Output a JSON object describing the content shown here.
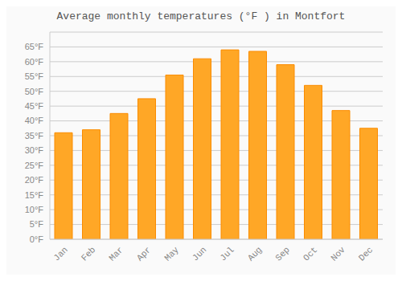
{
  "chart_data": {
    "type": "bar",
    "title": "Average monthly temperatures (°F ) in Montfort",
    "categories": [
      "Jan",
      "Feb",
      "Mar",
      "Apr",
      "May",
      "Jun",
      "Jul",
      "Aug",
      "Sep",
      "Oct",
      "Nov",
      "Dec"
    ],
    "values": [
      36,
      37,
      42.5,
      47.5,
      55.5,
      61,
      64,
      63.5,
      59,
      52,
      43.5,
      37.5
    ],
    "color": "#FFA726",
    "ylim": [
      0,
      70
    ],
    "yticks": [
      {
        "value": 0,
        "label": "0°F"
      },
      {
        "value": 5,
        "label": "5°F"
      },
      {
        "value": 10,
        "label": "10°F"
      },
      {
        "value": 15,
        "label": "15°F"
      },
      {
        "value": 20,
        "label": "20°F"
      },
      {
        "value": 25,
        "label": "25°F"
      },
      {
        "value": 30,
        "label": "30°F"
      },
      {
        "value": 35,
        "label": "35°F"
      },
      {
        "value": 40,
        "label": "40°F"
      },
      {
        "value": 45,
        "label": "45°F"
      },
      {
        "value": 50,
        "label": "50°F"
      },
      {
        "value": 55,
        "label": "55°F"
      },
      {
        "value": 60,
        "label": "60°F"
      },
      {
        "value": 65,
        "label": "65°F"
      }
    ],
    "grid": true
  }
}
